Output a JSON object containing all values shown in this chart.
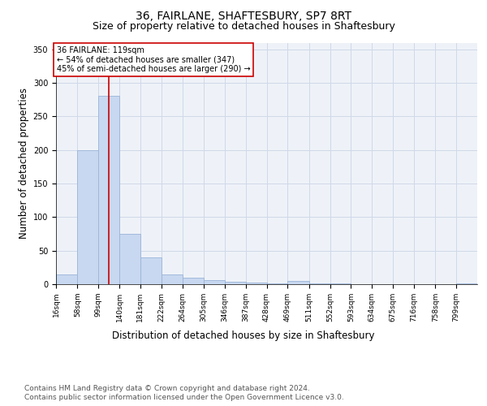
{
  "title1": "36, FAIRLANE, SHAFTESBURY, SP7 8RT",
  "title2": "Size of property relative to detached houses in Shaftesbury",
  "xlabel": "Distribution of detached houses by size in Shaftesbury",
  "ylabel": "Number of detached properties",
  "footer1": "Contains HM Land Registry data © Crown copyright and database right 2024.",
  "footer2": "Contains public sector information licensed under the Open Government Licence v3.0.",
  "annotation_title": "36 FAIRLANE: 119sqm",
  "annotation_line1": "← 54% of detached houses are smaller (347)",
  "annotation_line2": "45% of semi-detached houses are larger (290) →",
  "property_size": 119,
  "bar_edges": [
    16,
    58,
    99,
    140,
    181,
    222,
    264,
    305,
    346,
    387,
    428,
    469,
    511,
    552,
    593,
    634,
    675,
    716,
    758,
    799,
    840
  ],
  "bar_heights": [
    15,
    200,
    281,
    75,
    40,
    15,
    10,
    6,
    4,
    3,
    1,
    5,
    1,
    1,
    0,
    0,
    0,
    0,
    0,
    1
  ],
  "bar_color": "#c8d8f0",
  "bar_edge_color": "#9ab4d8",
  "vline_color": "#cc0000",
  "vline_x": 119,
  "ylim": [
    0,
    360
  ],
  "yticks": [
    0,
    50,
    100,
    150,
    200,
    250,
    300,
    350
  ],
  "grid_color": "#d0d8e8",
  "bg_color": "#eef2f8",
  "title_fontsize": 10,
  "subtitle_fontsize": 9,
  "axis_label_fontsize": 8.5,
  "tick_fontsize": 6.5,
  "annotation_fontsize": 7,
  "footer_fontsize": 6.5
}
